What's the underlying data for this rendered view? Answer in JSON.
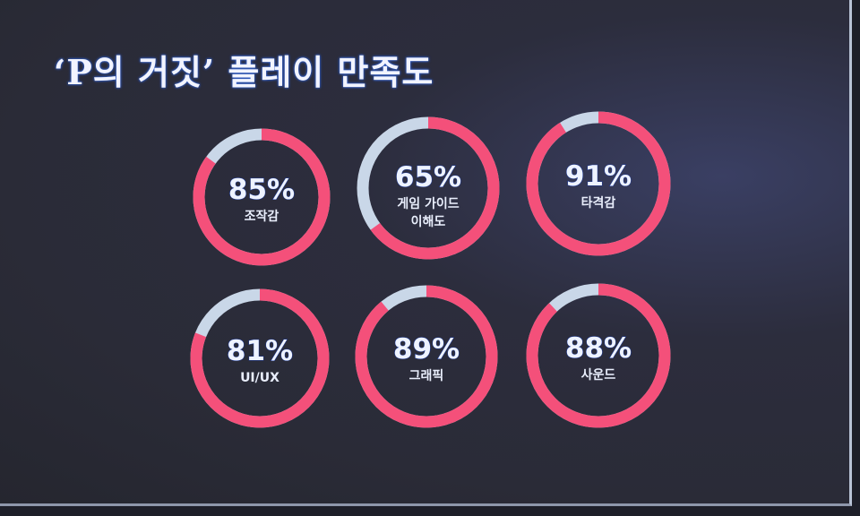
{
  "title": "‘P의 거짓’ 플레이 만족도",
  "colors": {
    "filled": "#f4507a",
    "remainder": "#c9d7e8",
    "background": "#2c2d3d"
  },
  "chart_data": {
    "type": "donut",
    "title": "‘P의 거짓’ 플레이 만족도",
    "unit": "%",
    "items": [
      {
        "label": "조작감",
        "lines": [
          "조작감"
        ],
        "value": 85
      },
      {
        "label": "게임 가이드 이해도",
        "lines": [
          "게임 가이드",
          "이해도"
        ],
        "value": 65
      },
      {
        "label": "타격감",
        "lines": [
          "타격감"
        ],
        "value": 91
      },
      {
        "label": "UI/UX",
        "lines": [
          "UI/UX"
        ],
        "value": 81
      },
      {
        "label": "그래픽",
        "lines": [
          "그래픽"
        ],
        "value": 89
      },
      {
        "label": "사운드",
        "lines": [
          "사운드"
        ],
        "value": 88
      }
    ]
  }
}
